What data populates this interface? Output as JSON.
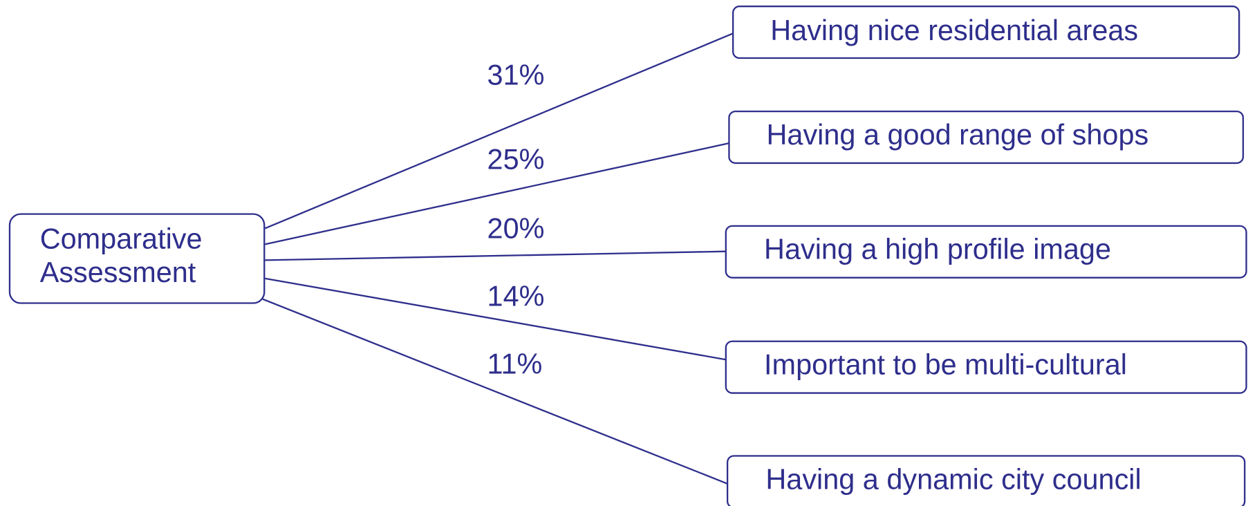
{
  "root": {
    "lines": [
      "Comparative",
      "Assessment"
    ]
  },
  "branches": [
    {
      "label": "Having nice residential areas",
      "share": "31%"
    },
    {
      "label": "Having a good range of shops",
      "share": "25%"
    },
    {
      "label": "Having a high profile image",
      "share": "20%"
    },
    {
      "label": "Important to be multi-cultural",
      "share": "14%"
    },
    {
      "label": "Having a dynamic city council",
      "share": "11%"
    }
  ]
}
